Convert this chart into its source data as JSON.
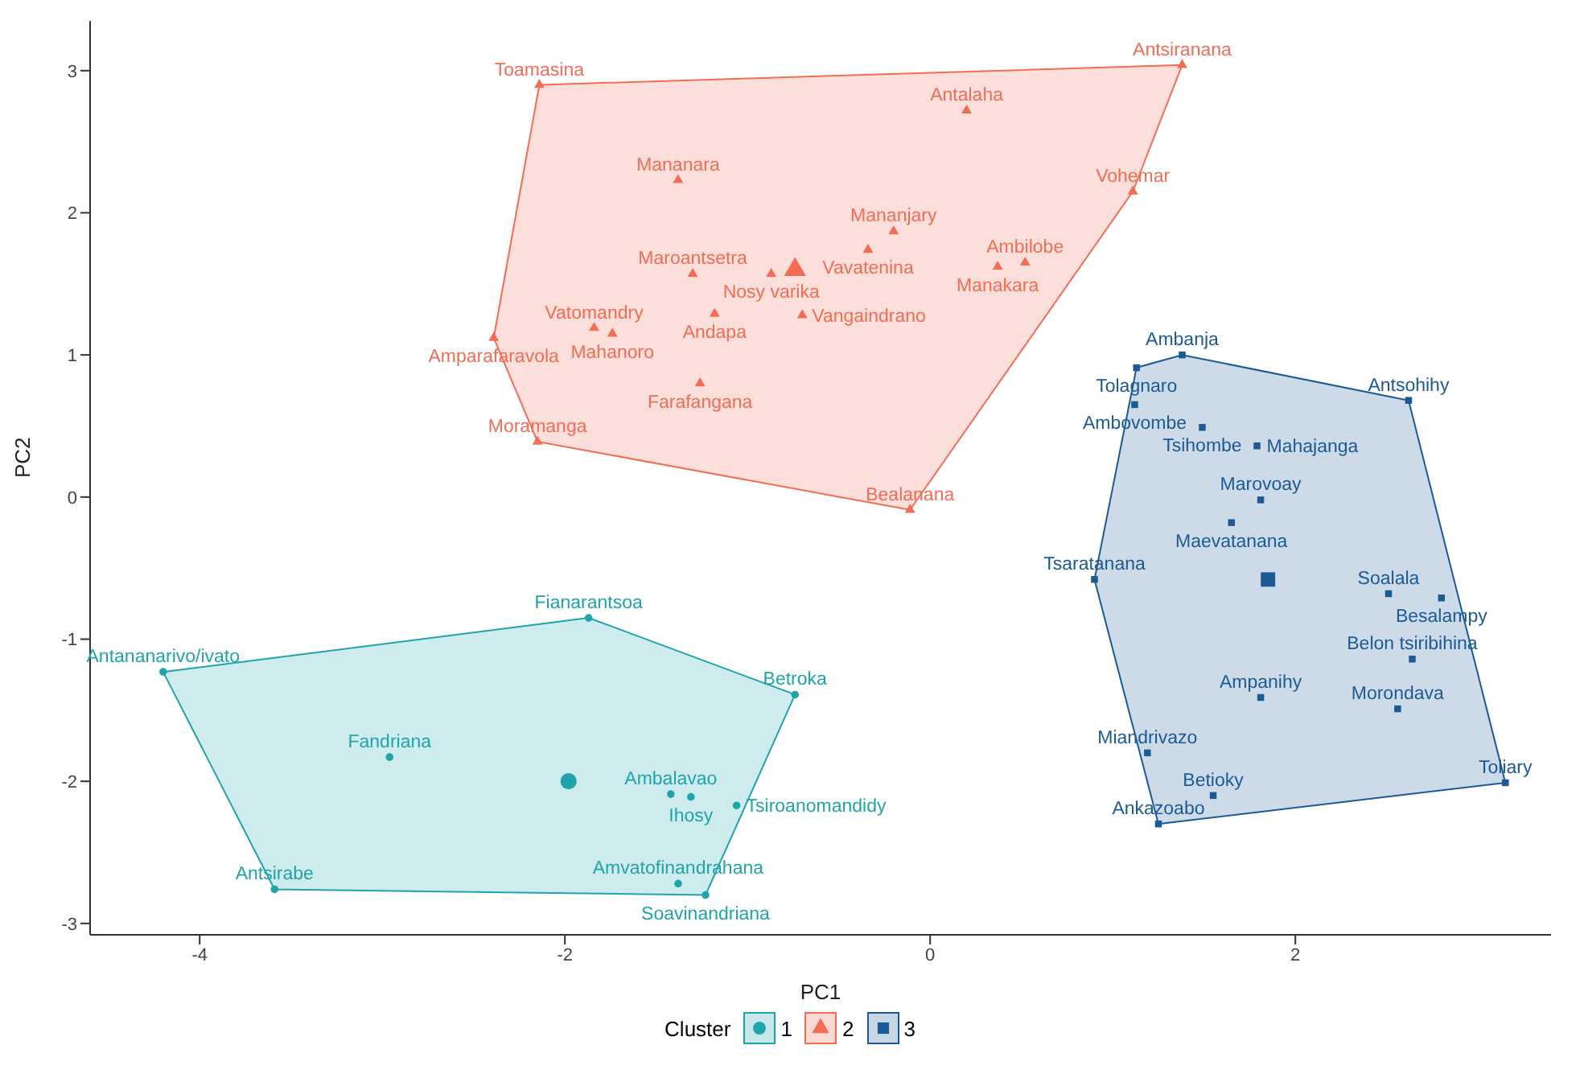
{
  "chart_data": {
    "type": "scatter",
    "xlabel": "PC1",
    "ylabel": "PC2",
    "legend_title": "Cluster",
    "legend": "bottom",
    "grid": false,
    "xlim": [
      -4.6,
      3.4
    ],
    "ylim": [
      -3.08,
      3.35
    ],
    "xticks": [
      -4,
      -2,
      0,
      2
    ],
    "yticks": [
      -3,
      -2,
      -1,
      0,
      1,
      2,
      3
    ],
    "series": [
      {
        "name": "1",
        "color": "#20a4ac",
        "marker": "circle",
        "x": [
          -4.2,
          -1.87,
          -0.74,
          -2.96,
          -1.42,
          -1.31,
          -1.06,
          -1.38,
          -1.23,
          -3.59
        ],
        "values": [
          -1.23,
          -0.85,
          -1.39,
          -1.83,
          -2.09,
          -2.11,
          -2.17,
          -2.72,
          -2.8,
          -2.76
        ]
      },
      {
        "name": "2",
        "color": "#f26d55",
        "marker": "triangle",
        "x": [
          -2.14,
          -1.38,
          -1.3,
          -0.87,
          -0.34,
          -0.2,
          0.2,
          1.38,
          1.11,
          0.52,
          0.37,
          -1.18,
          -0.7,
          -1.84,
          -1.74,
          -2.39,
          -1.26,
          -2.15,
          -0.11
        ],
        "values": [
          2.9,
          2.23,
          1.57,
          1.57,
          1.74,
          1.87,
          2.72,
          3.04,
          2.15,
          1.65,
          1.62,
          1.29,
          1.28,
          1.19,
          1.15,
          1.12,
          0.8,
          0.39,
          -0.09
        ]
      },
      {
        "name": "3",
        "color": "#1c5a96",
        "marker": "square",
        "x": [
          1.38,
          1.13,
          1.12,
          2.62,
          1.49,
          1.79,
          1.81,
          1.65,
          0.9,
          2.51,
          2.8,
          2.64,
          1.81,
          2.56,
          1.19,
          1.55,
          1.25,
          3.15
        ],
        "values": [
          1.0,
          0.91,
          0.65,
          0.68,
          0.49,
          0.36,
          -0.02,
          -0.18,
          -0.58,
          -0.68,
          -0.71,
          -1.14,
          -1.41,
          -1.49,
          -1.8,
          -2.1,
          -2.3,
          -2.01
        ]
      },
      {
        "color": "#20a4ac",
        "marker": "circle",
        "x": [
          -1.98
        ],
        "values": [
          -2.0
        ]
      },
      {
        "color": "#f26d55",
        "marker": "triangle",
        "x": [
          -0.74
        ],
        "values": [
          1.6
        ]
      },
      {
        "color": "#1c5a96",
        "marker": "square",
        "x": [
          1.85
        ],
        "values": [
          -0.58
        ]
      }
    ],
    "annotations": [
      {
        "text": "Antananarivo/ivato",
        "x": -4.2,
        "y": -1.23
      },
      {
        "text": "Fianarantsoa",
        "x": -1.87,
        "y": -0.85
      },
      {
        "text": "Betroka",
        "x": -0.74,
        "y": -1.39
      },
      {
        "text": "Fandriana",
        "x": -2.96,
        "y": -1.83
      },
      {
        "text": "Ambalavao",
        "x": -1.42,
        "y": -2.09
      },
      {
        "text": "Ihosy",
        "x": -1.31,
        "y": -2.11
      },
      {
        "text": "Tsiroanomandidy",
        "x": -1.06,
        "y": -2.17
      },
      {
        "text": "Amvatofinandrahana",
        "x": -1.38,
        "y": -2.72
      },
      {
        "text": "Soavinandriana",
        "x": -1.23,
        "y": -2.8
      },
      {
        "text": "Antsirabe",
        "x": -3.59,
        "y": -2.76
      },
      {
        "text": "Toamasina",
        "x": -2.14,
        "y": 2.9
      },
      {
        "text": "Mananara",
        "x": -1.38,
        "y": 2.23
      },
      {
        "text": "Maroantsetra",
        "x": -1.3,
        "y": 1.57
      },
      {
        "text": "Nosy varika",
        "x": -0.87,
        "y": 1.57
      },
      {
        "text": "Vavatenina",
        "x": -0.34,
        "y": 1.74
      },
      {
        "text": "Mananjary",
        "x": -0.2,
        "y": 1.87
      },
      {
        "text": "Antalaha",
        "x": 0.2,
        "y": 2.72
      },
      {
        "text": "Antsiranana",
        "x": 1.38,
        "y": 3.04
      },
      {
        "text": "Vohemar",
        "x": 1.11,
        "y": 2.15
      },
      {
        "text": "Ambilobe",
        "x": 0.52,
        "y": 1.65
      },
      {
        "text": "Manakara",
        "x": 0.37,
        "y": 1.62
      },
      {
        "text": "Andapa",
        "x": -1.18,
        "y": 1.29
      },
      {
        "text": "Vangaindrano",
        "x": -0.7,
        "y": 1.28
      },
      {
        "text": "Vatomandry",
        "x": -1.84,
        "y": 1.19
      },
      {
        "text": "Mahanoro",
        "x": -1.74,
        "y": 1.15
      },
      {
        "text": "Amparafaravola",
        "x": -2.39,
        "y": 1.12
      },
      {
        "text": "Farafangana",
        "x": -1.26,
        "y": 0.8
      },
      {
        "text": "Moramanga",
        "x": -2.15,
        "y": 0.39
      },
      {
        "text": "Bealanana",
        "x": -0.11,
        "y": -0.09
      },
      {
        "text": "Ambanja",
        "x": 1.38,
        "y": 1.0
      },
      {
        "text": "Tolagnaro",
        "x": 1.13,
        "y": 0.91
      },
      {
        "text": "Ambovombe",
        "x": 1.12,
        "y": 0.65
      },
      {
        "text": "Antsohihy",
        "x": 2.62,
        "y": 0.68
      },
      {
        "text": "Tsihombe",
        "x": 1.49,
        "y": 0.49
      },
      {
        "text": "Mahajanga",
        "x": 1.79,
        "y": 0.36
      },
      {
        "text": "Marovoay",
        "x": 1.81,
        "y": -0.02
      },
      {
        "text": "Maevatanana",
        "x": 1.65,
        "y": -0.18
      },
      {
        "text": "Tsaratanana",
        "x": 0.9,
        "y": -0.58
      },
      {
        "text": "Soalala",
        "x": 2.51,
        "y": -0.68
      },
      {
        "text": "Besalampy",
        "x": 2.8,
        "y": -0.71
      },
      {
        "text": "Belon tsiribihina",
        "x": 2.64,
        "y": -1.14
      },
      {
        "text": "Ampanihy",
        "x": 1.81,
        "y": -1.41
      },
      {
        "text": "Morondava",
        "x": 2.56,
        "y": -1.49
      },
      {
        "text": "Miandrivazo",
        "x": 1.19,
        "y": -1.8
      },
      {
        "text": "Betioky",
        "x": 1.55,
        "y": -2.1
      },
      {
        "text": "Ankazoabo",
        "x": 1.25,
        "y": -2.3
      },
      {
        "text": "Toliary",
        "x": 3.15,
        "y": -2.01
      }
    ]
  }
}
